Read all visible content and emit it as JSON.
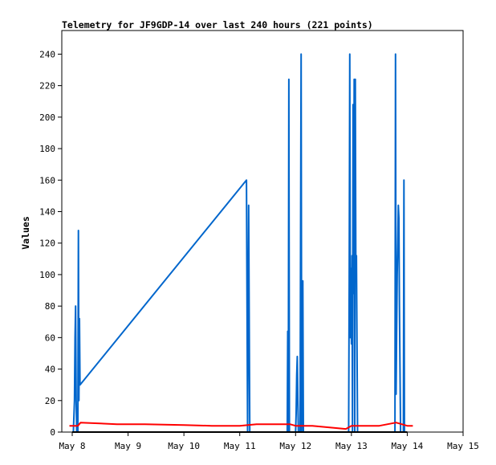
{
  "chart_data": {
    "type": "line",
    "title": "Telemetry for JF9GDP-14 over last 240 hours (221 points)",
    "xlabel": "",
    "ylabel": "Values",
    "xlim": [
      "May 8",
      "May 15"
    ],
    "ylim": [
      0,
      255
    ],
    "x_ticks": [
      "May 8",
      "May 9",
      "May 10",
      "May 11",
      "May 12",
      "May 13",
      "May 14",
      "May 15"
    ],
    "y_ticks": [
      0,
      20,
      40,
      60,
      80,
      100,
      120,
      140,
      160,
      180,
      200,
      220,
      240
    ],
    "grid": false,
    "legend": "none",
    "colors": {
      "blue": "#0066cc",
      "red": "#ff0000",
      "black": "#000000"
    },
    "x_unit": "days since May 8 00:00",
    "series": [
      {
        "color": "#0066cc",
        "points": [
          [
            0.02,
            0
          ],
          [
            0.04,
            20
          ],
          [
            0.05,
            60
          ],
          [
            0.06,
            80
          ],
          [
            0.07,
            20
          ],
          [
            0.08,
            0
          ],
          [
            0.09,
            15
          ],
          [
            0.1,
            0
          ],
          [
            0.11,
            128
          ],
          [
            0.12,
            20
          ],
          [
            0.13,
            72
          ],
          [
            0.14,
            30
          ],
          [
            3.12,
            160
          ],
          [
            3.14,
            0
          ],
          [
            3.16,
            144
          ],
          [
            3.18,
            0
          ],
          [
            3.85,
            0
          ],
          [
            3.86,
            64
          ],
          [
            3.87,
            0
          ],
          [
            3.88,
            224
          ],
          [
            3.89,
            0
          ],
          [
            4.0,
            0
          ],
          [
            4.01,
            12
          ],
          [
            4.02,
            36
          ],
          [
            4.03,
            48
          ],
          [
            4.04,
            20
          ],
          [
            4.05,
            0
          ],
          [
            4.08,
            0
          ],
          [
            4.09,
            120
          ],
          [
            4.1,
            240
          ],
          [
            4.11,
            0
          ],
          [
            4.13,
            96
          ],
          [
            4.14,
            0
          ],
          [
            4.95,
            0
          ],
          [
            4.96,
            96
          ],
          [
            4.97,
            240
          ],
          [
            4.98,
            60
          ],
          [
            4.99,
            104
          ],
          [
            5.0,
            56
          ],
          [
            5.01,
            112
          ],
          [
            5.02,
            0
          ],
          [
            5.03,
            208
          ],
          [
            5.04,
            88
          ],
          [
            5.05,
            224
          ],
          [
            5.06,
            0
          ],
          [
            5.07,
            224
          ],
          [
            5.08,
            96
          ],
          [
            5.09,
            112
          ],
          [
            5.1,
            56
          ],
          [
            5.11,
            0
          ],
          [
            5.78,
            0
          ],
          [
            5.79,
            240
          ],
          [
            5.8,
            24
          ],
          [
            5.81,
            64
          ],
          [
            5.82,
            100
          ],
          [
            5.83,
            120
          ],
          [
            5.84,
            144
          ],
          [
            5.85,
            136
          ],
          [
            5.86,
            80
          ],
          [
            5.87,
            40
          ],
          [
            5.88,
            0
          ],
          [
            5.93,
            0
          ],
          [
            5.94,
            160
          ],
          [
            5.95,
            0
          ]
        ]
      },
      {
        "color": "#ff0000",
        "points": [
          [
            -0.05,
            4
          ],
          [
            0.1,
            4
          ],
          [
            0.15,
            6
          ],
          [
            0.8,
            5
          ],
          [
            1.3,
            5
          ],
          [
            2.0,
            4.5
          ],
          [
            2.5,
            4
          ],
          [
            3.0,
            4
          ],
          [
            3.3,
            5
          ],
          [
            3.9,
            5
          ],
          [
            4.0,
            4
          ],
          [
            4.3,
            4
          ],
          [
            4.9,
            2
          ],
          [
            5.0,
            4
          ],
          [
            5.5,
            4
          ],
          [
            5.8,
            6
          ],
          [
            6.0,
            4
          ],
          [
            6.1,
            4
          ]
        ]
      },
      {
        "color": "#000000",
        "points": [
          [
            0.0,
            0
          ],
          [
            6.0,
            0
          ]
        ]
      }
    ]
  }
}
